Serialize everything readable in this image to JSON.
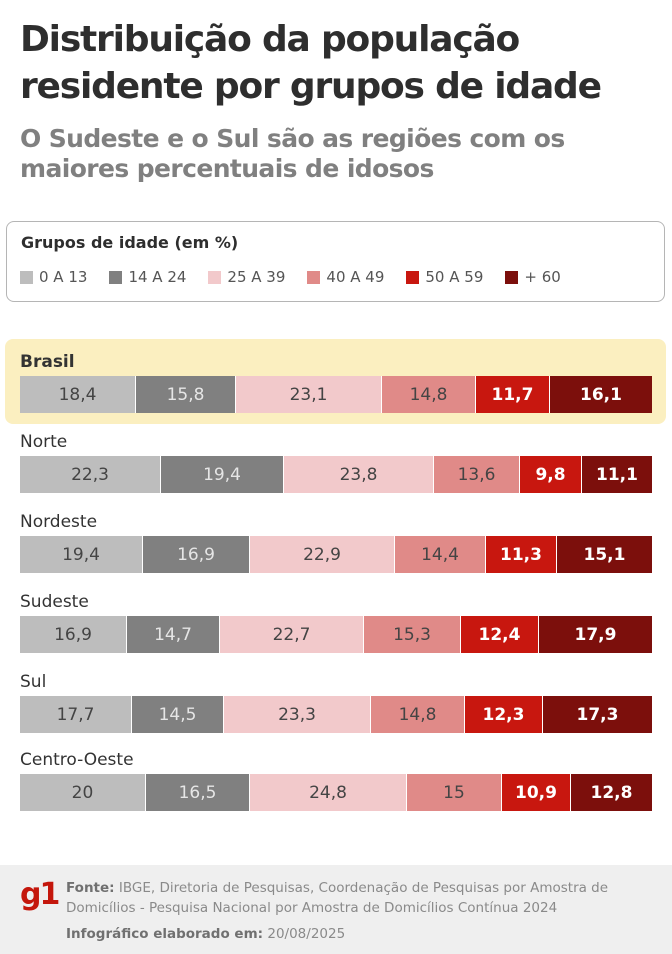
{
  "header": {
    "title": "Distribuição da população residente por grupos de idade",
    "subtitle": "O Sudeste e o Sul são as regiões com os maiores percentuais de idosos"
  },
  "legend": {
    "title": "Grupos de idade (em %)",
    "items": [
      {
        "label": "0 A 13",
        "color": "#bdbdbd"
      },
      {
        "label": "14 A 24",
        "color": "#808080"
      },
      {
        "label": "25 A 39",
        "color": "#f2c9cb"
      },
      {
        "label": "40 A 49",
        "color": "#e08a88"
      },
      {
        "label": "50 A 59",
        "color": "#c8170f"
      },
      {
        "label": "+ 60",
        "color": "#7c0f0c"
      }
    ]
  },
  "chart_data": {
    "type": "bar",
    "orientation": "horizontal-stacked-100",
    "title": "Distribuição da população residente por grupos de idade",
    "subtitle": "O Sudeste e o Sul são as regiões com os maiores percentuais de idosos",
    "unit": "%",
    "categories": [
      "Brasil",
      "Norte",
      "Nordeste",
      "Sudeste",
      "Sul",
      "Centro-Oeste"
    ],
    "highlighted_category": "Brasil",
    "series": [
      {
        "name": "0 A 13",
        "color": "#bdbdbd",
        "text_color": "#444444",
        "bold": false,
        "values": [
          18.4,
          22.3,
          19.4,
          16.9,
          17.7,
          20
        ]
      },
      {
        "name": "14 A 24",
        "color": "#808080",
        "text_color": "#e6e6e6",
        "bold": false,
        "values": [
          15.8,
          19.4,
          16.9,
          14.7,
          14.5,
          16.5
        ]
      },
      {
        "name": "25 A 39",
        "color": "#f2c9cb",
        "text_color": "#444444",
        "bold": false,
        "values": [
          23.1,
          23.8,
          22.9,
          22.7,
          23.3,
          24.8
        ]
      },
      {
        "name": "40 A 49",
        "color": "#e08a88",
        "text_color": "#444444",
        "bold": false,
        "values": [
          14.8,
          13.6,
          14.4,
          15.3,
          14.8,
          15
        ]
      },
      {
        "name": "50 A 59",
        "color": "#c8170f",
        "text_color": "#ffffff",
        "bold": true,
        "values": [
          11.7,
          9.8,
          11.3,
          12.4,
          12.3,
          10.9
        ]
      },
      {
        "name": "+ 60",
        "color": "#7c0f0c",
        "text_color": "#ffffff",
        "bold": true,
        "values": [
          16.1,
          11.1,
          15.1,
          17.9,
          17.3,
          12.8
        ]
      }
    ],
    "value_labels": [
      [
        "18,4",
        "15,8",
        "23,1",
        "14,8",
        "11,7",
        "16,1"
      ],
      [
        "22,3",
        "19,4",
        "23,8",
        "13,6",
        "9,8",
        "11,1"
      ],
      [
        "19,4",
        "16,9",
        "22,9",
        "14,4",
        "11,3",
        "15,1"
      ],
      [
        "16,9",
        "14,7",
        "22,7",
        "15,3",
        "12,4",
        "17,9"
      ],
      [
        "17,7",
        "14,5",
        "23,3",
        "14,8",
        "12,3",
        "17,3"
      ],
      [
        "20",
        "16,5",
        "24,8",
        "15",
        "10,9",
        "12,8"
      ]
    ],
    "legend": "top",
    "grid": false
  },
  "footer": {
    "logo": "g1",
    "source_label": "Fonte:",
    "source_text": "IBGE, Diretoria de Pesquisas, Coordenação de Pesquisas por Amostra de Domicílios - Pesquisa Nacional por Amostra de Domicílios Contínua 2024",
    "created_label": "Infográfico elaborado em:",
    "created_date": "20/08/2025"
  }
}
